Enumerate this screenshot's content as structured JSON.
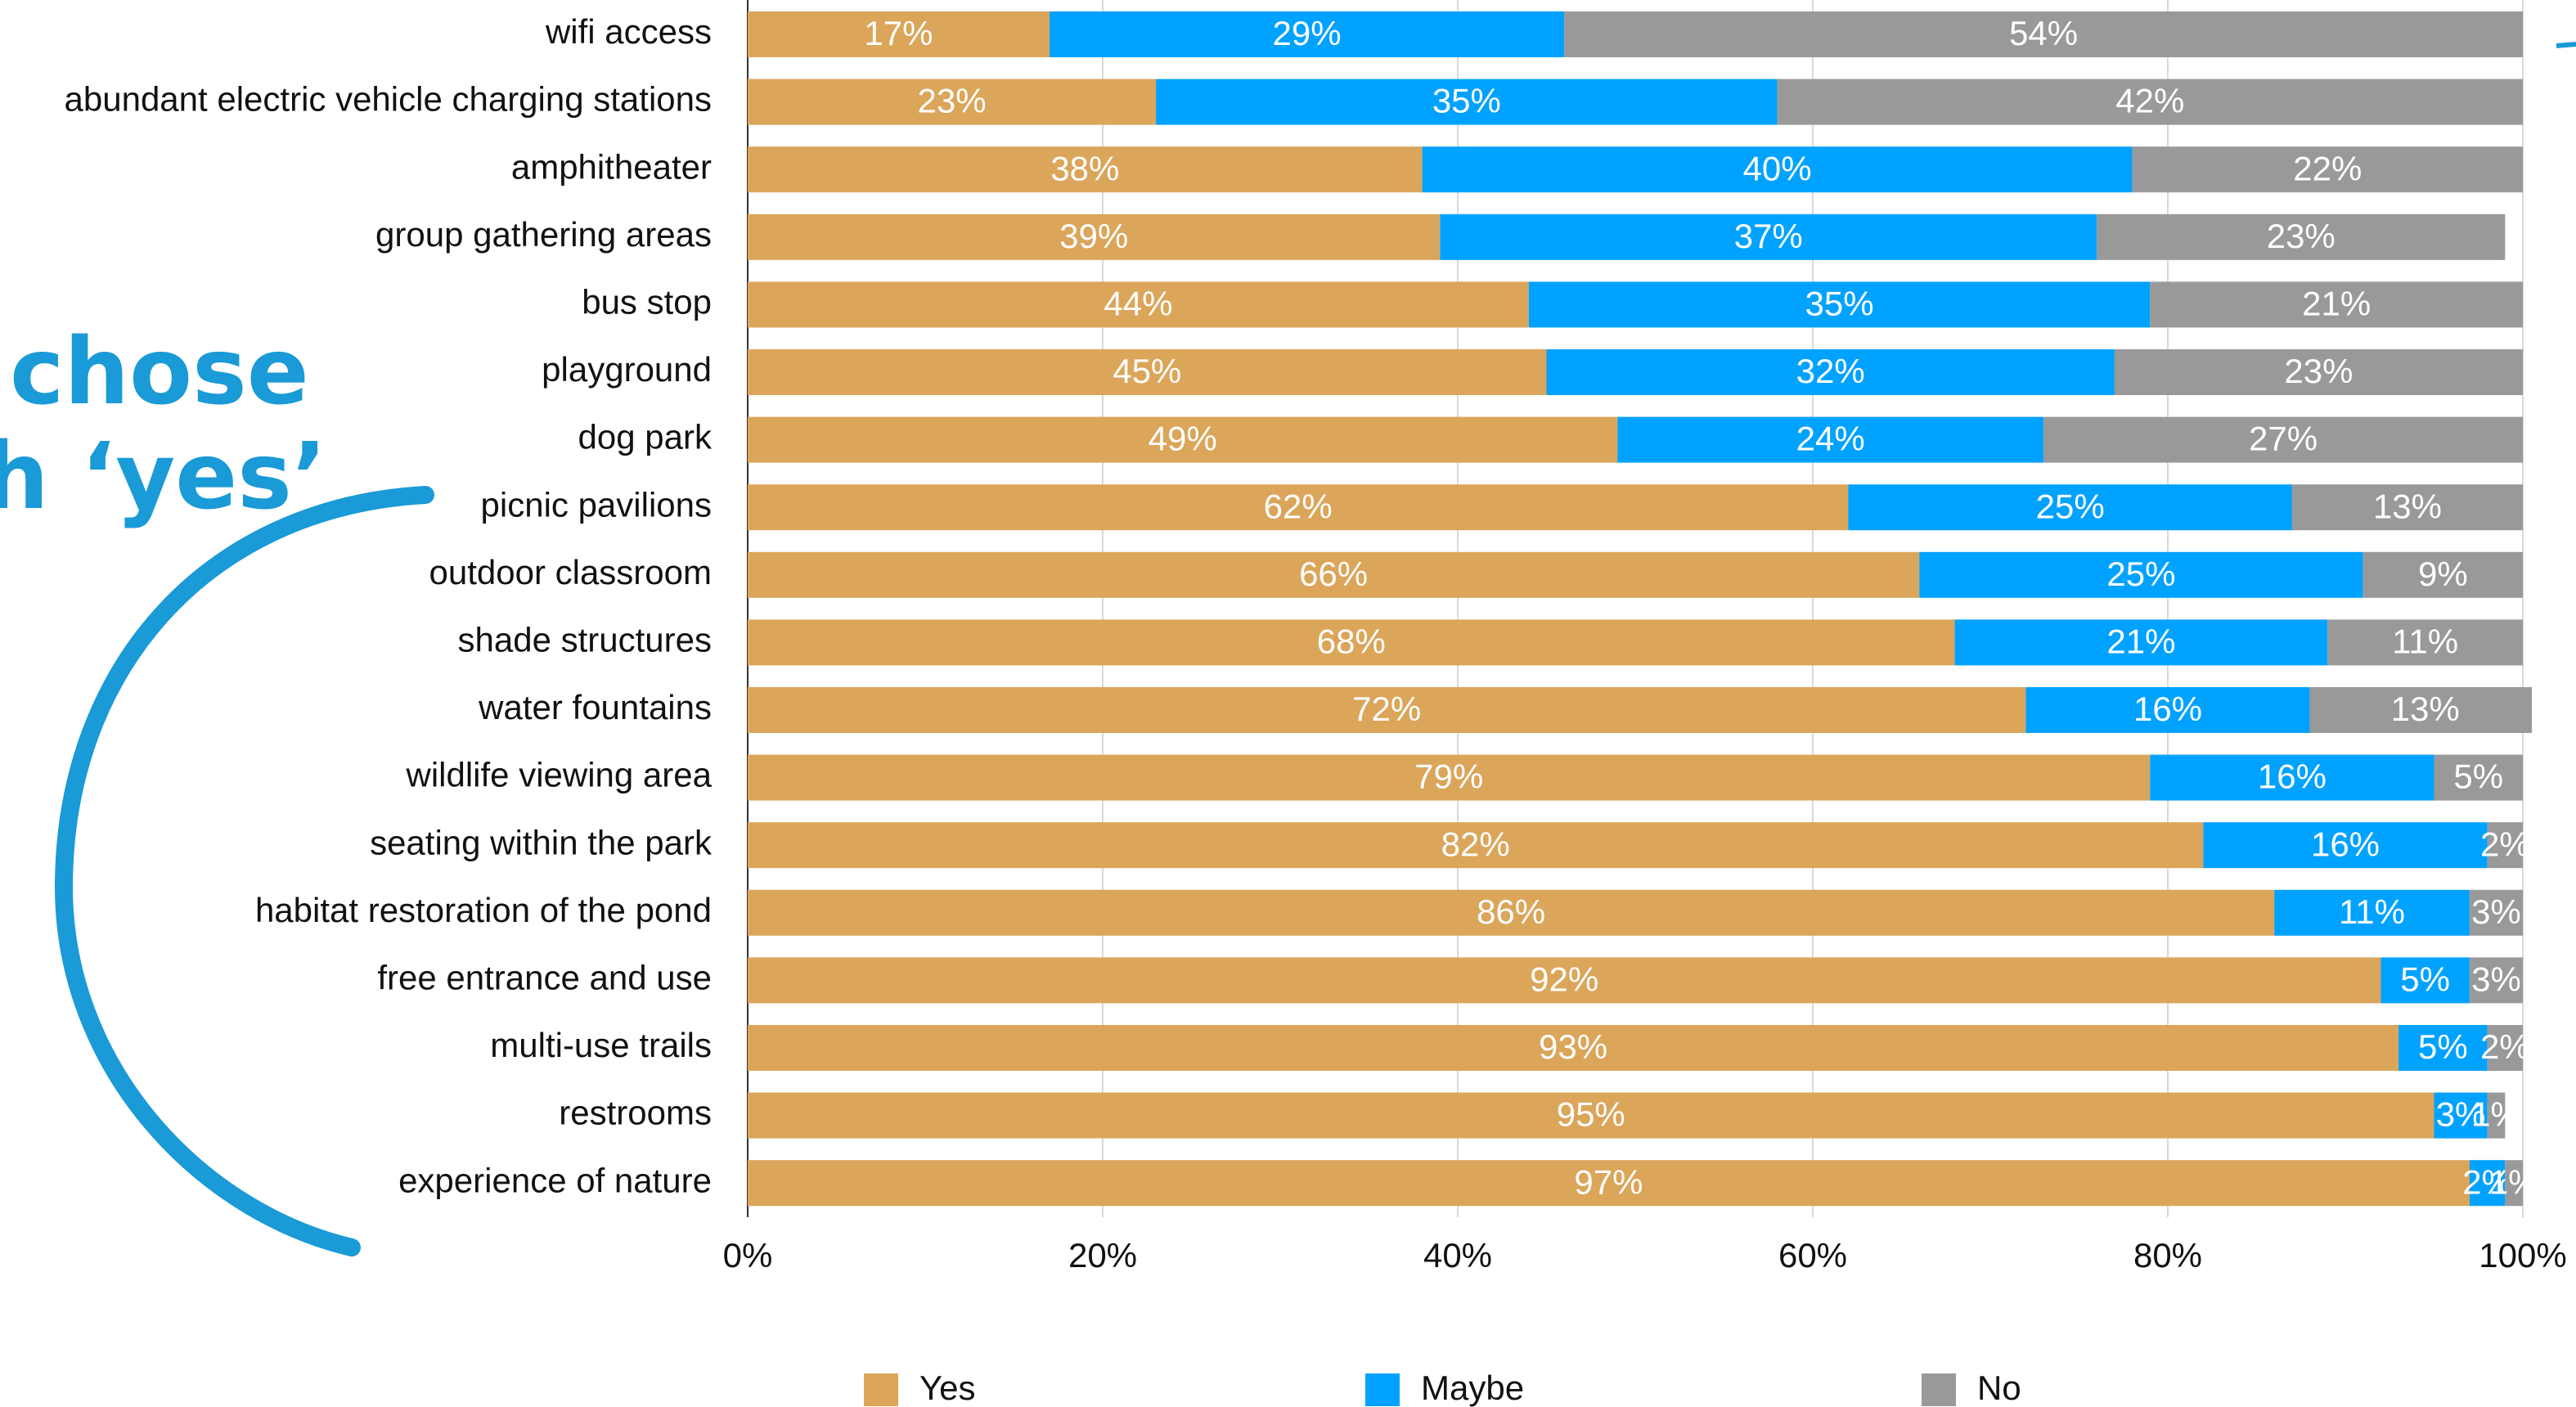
{
  "chart_data": {
    "type": "stacked-barh",
    "annotations": [
      "chose",
      "h ‘yes’"
    ],
    "categories": [
      "wifi access",
      "abundant electric vehicle charging stations",
      "amphitheater",
      "group gathering areas",
      "bus stop",
      "playground",
      "dog park",
      "picnic pavilions",
      "outdoor classroom",
      "shade structures",
      "water fountains",
      "wildlife viewing area",
      "seating within the park",
      "habitat restoration of the pond",
      "free entrance and use",
      "multi-use trails",
      "restrooms",
      "experience of nature"
    ],
    "series": [
      {
        "name": "Yes",
        "color": "#dba55a",
        "values": [
          17,
          23,
          38,
          39,
          44,
          45,
          49,
          62,
          66,
          68,
          72,
          79,
          82,
          86,
          92,
          93,
          95,
          97
        ],
        "value_labels": [
          "17%",
          "23%",
          "38%",
          "39%",
          "44%",
          "45%",
          "49%",
          "62%",
          "66%",
          "68%",
          "72%",
          "79%",
          "82%",
          "86%",
          "92%",
          "93%",
          "95%",
          "97%"
        ]
      },
      {
        "name": "Maybe",
        "color": "#00a2ff",
        "values": [
          29,
          35,
          40,
          37,
          35,
          32,
          24,
          25,
          25,
          21,
          16,
          16,
          16,
          11,
          5,
          5,
          3,
          2
        ],
        "value_labels": [
          "29%",
          "35%",
          "40%",
          "37%",
          "35%",
          "32%",
          "24%",
          "25%",
          "25%",
          "21%",
          "16%",
          "16%",
          "16%",
          "11%",
          "5%",
          "5%",
          "3%",
          "2%"
        ]
      },
      {
        "name": "No",
        "color": "#999999",
        "values": [
          54,
          42,
          22,
          23,
          21,
          23,
          27,
          13,
          9,
          11,
          13,
          5,
          2,
          3,
          3,
          2,
          1,
          1
        ],
        "value_labels": [
          "54%",
          "42%",
          "22%",
          "23%",
          "21%",
          "23%",
          "27%",
          "13%",
          "9%",
          "11%",
          "13%",
          "5%",
          "2%",
          "3%",
          "3%",
          "2%",
          "1%",
          "1%"
        ]
      }
    ],
    "xlim": [
      0,
      100
    ],
    "xticks": [
      {
        "value": 0,
        "label": "0%"
      },
      {
        "value": 20,
        "label": "20%"
      },
      {
        "value": 40,
        "label": "40%"
      },
      {
        "value": 60,
        "label": "60%"
      },
      {
        "value": 80,
        "label": "80%"
      },
      {
        "value": 100,
        "label": "100%"
      }
    ],
    "grid": true
  }
}
